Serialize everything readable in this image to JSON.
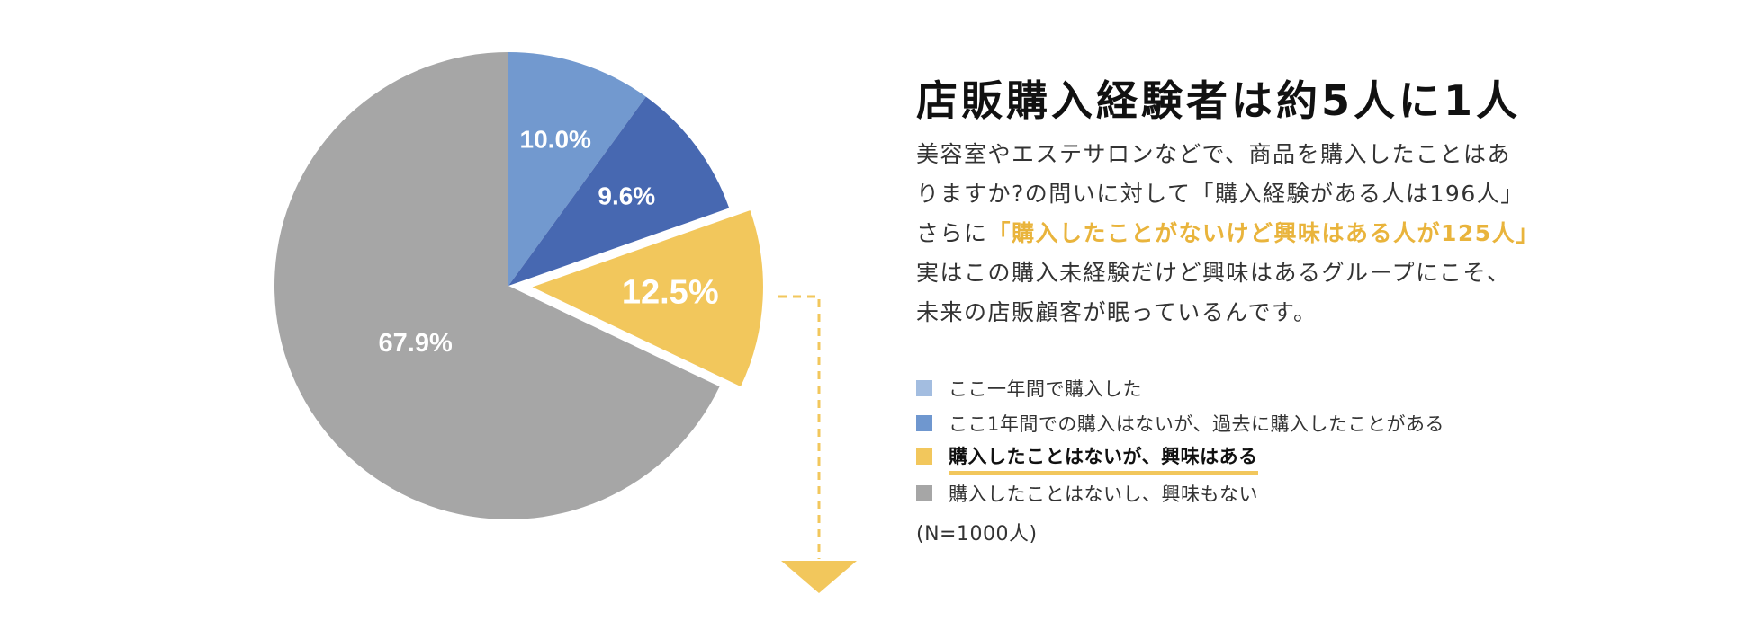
{
  "headline": "店販購入経験者は約5人に1人",
  "body": {
    "line1": "美容室やエステサロンなどで、商品を購入したことはあ",
    "line2": "りますか?の問いに対して「購入経験がある人は196人」",
    "line3_prefix": "さらに",
    "line3_highlight": "「購入したことがないけど興味はある人が125人」",
    "line4": "実はこの購入未経験だけど興味はあるグループにこそ、",
    "line5": "未来の店販顧客が眠っているんです。"
  },
  "legend": [
    {
      "label": "ここ一年間で購入した",
      "color": "#a3bde0"
    },
    {
      "label": "ここ1年間での購入はないが、過去に購入したことがある",
      "color": "#6f97cf"
    },
    {
      "label": "購入したことはないが、興味はある",
      "color": "#f2c75c",
      "emphasis": true
    },
    {
      "label": "購入したことはないし、興味もない",
      "color": "#a6a6a6"
    }
  ],
  "sample_note": "(N=1000人)",
  "chart_data": {
    "type": "pie",
    "start": "12 o'clock, clockwise",
    "slices": [
      {
        "label": "10.0%",
        "value": 10.0,
        "category": "ここ一年間で購入した",
        "color": "#7299cf"
      },
      {
        "label": "9.6%",
        "value": 9.6,
        "category": "ここ1年間での購入はないが、過去に購入したことがある",
        "color": "#4768b1"
      },
      {
        "label": "12.5%",
        "value": 12.5,
        "category": "購入したことはないが、興味はある",
        "color": "#f2c75c",
        "exploded": true
      },
      {
        "label": "67.9%",
        "value": 67.9,
        "category": "購入したことはないし、興味もない",
        "color": "#a6a6a6"
      }
    ]
  }
}
